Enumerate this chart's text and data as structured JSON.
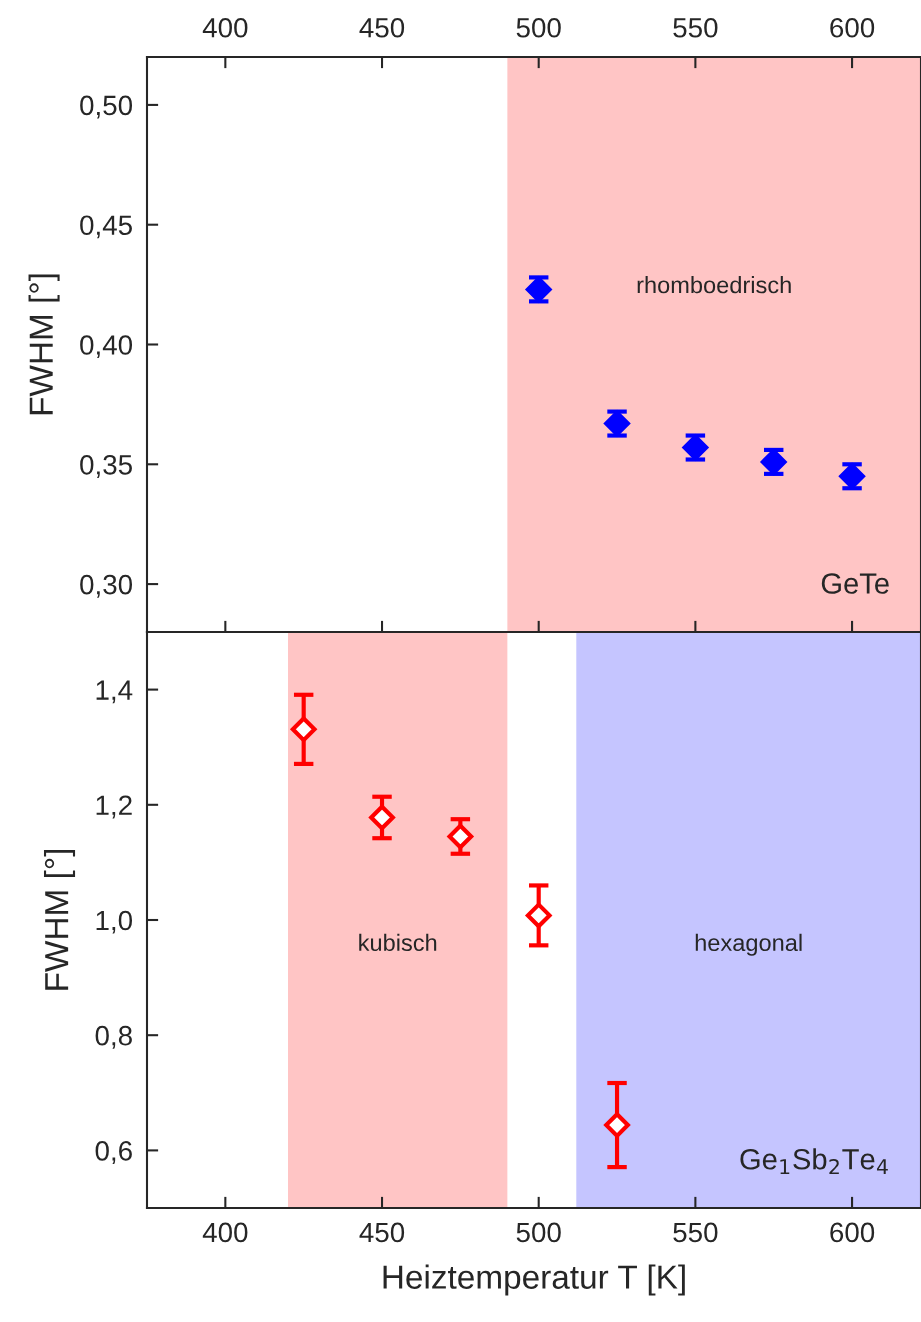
{
  "chart_data": [
    {
      "type": "scatter",
      "ylabel": "FWHM [°]",
      "xlim": [
        375,
        622
      ],
      "xticks": [
        400,
        450,
        500,
        550,
        600
      ],
      "ylim": [
        0.28,
        0.52
      ],
      "yticks": [
        {
          "value": 0.3,
          "label": "0,30"
        },
        {
          "value": 0.35,
          "label": "0,35"
        },
        {
          "value": 0.4,
          "label": "0,40"
        },
        {
          "value": 0.45,
          "label": "0,45"
        },
        {
          "value": 0.5,
          "label": "0,50"
        }
      ],
      "marker": "diamond",
      "grid": false,
      "legend": false,
      "series": [
        {
          "color": "#0000ff",
          "x": [
            500,
            525,
            550,
            575,
            600
          ],
          "values": [
            0.423,
            0.367,
            0.357,
            0.351,
            0.345
          ],
          "errors": [
            0.005,
            0.005,
            0.005,
            0.005,
            0.005
          ]
        }
      ],
      "bands": [
        {
          "axis": "x",
          "from": 490,
          "to": 622,
          "color": "#ffc5c5",
          "label": "rhomboedrisch"
        }
      ],
      "annotations": [
        "GeTe"
      ]
    },
    {
      "type": "scatter",
      "ylabel": "FWHM [°]",
      "xlabel": "Heiztemperatur T [K]",
      "xlim": [
        375,
        622
      ],
      "xticks": [
        400,
        450,
        500,
        550,
        600
      ],
      "ylim": [
        0.5,
        1.5
      ],
      "yticks": [
        {
          "value": 0.6,
          "label": "0,6"
        },
        {
          "value": 0.8,
          "label": "0,8"
        },
        {
          "value": 1.0,
          "label": "1,0"
        },
        {
          "value": 1.2,
          "label": "1,2"
        },
        {
          "value": 1.4,
          "label": "1,4"
        }
      ],
      "marker": "diamond",
      "grid": false,
      "legend": false,
      "series": [
        {
          "color": "#ff0000",
          "x": [
            425,
            450,
            475,
            500,
            525
          ],
          "values": [
            1.331,
            1.178,
            1.145,
            1.008,
            0.644
          ],
          "errors": [
            0.06,
            0.036,
            0.03,
            0.052,
            0.073
          ]
        }
      ],
      "bands": [
        {
          "axis": "x",
          "from": 420,
          "to": 490,
          "color": "#ffc5c5",
          "label": "kubisch"
        },
        {
          "axis": "x",
          "from": 512,
          "to": 622,
          "color": "#c5c5ff",
          "label": "hexagonal"
        }
      ],
      "annotations": [
        "Ge$_{1}$Sb$_{2}$Te$_{4}$"
      ]
    }
  ]
}
